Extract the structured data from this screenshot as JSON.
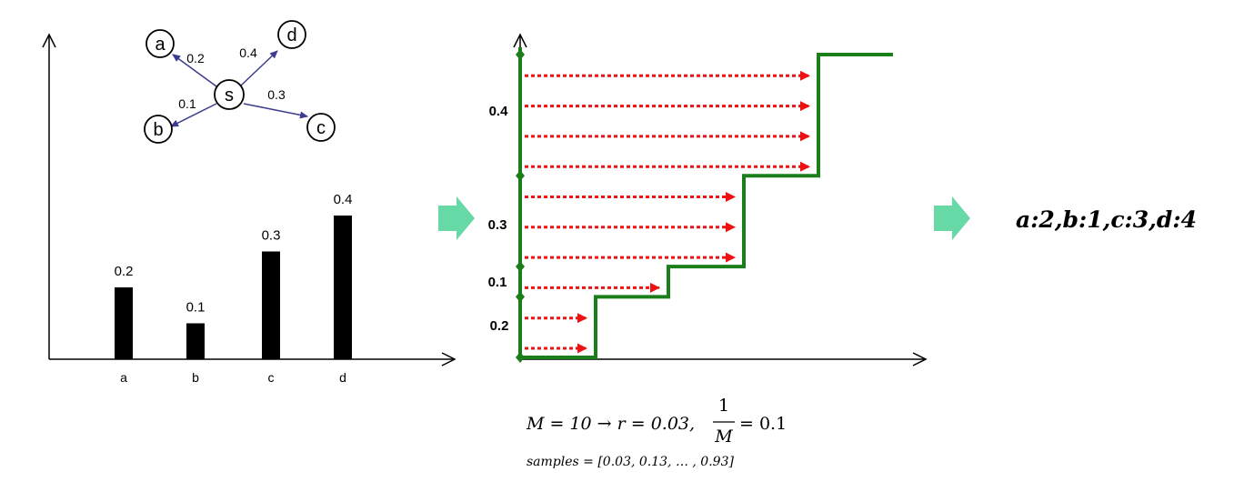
{
  "bar_chart": {
    "categories": [
      "a",
      "b",
      "c",
      "d"
    ],
    "values": [
      0.2,
      0.1,
      0.3,
      0.4
    ],
    "value_labels": [
      "0.2",
      "0.1",
      "0.3",
      "0.4"
    ]
  },
  "graph": {
    "center": "s",
    "nodes": [
      {
        "label": "a",
        "weight": "0.2"
      },
      {
        "label": "b",
        "weight": "0.1"
      },
      {
        "label": "c",
        "weight": "0.3"
      },
      {
        "label": "d",
        "weight": "0.4"
      }
    ]
  },
  "step_chart": {
    "segment_labels": [
      "0.2",
      "0.1",
      "0.3",
      "0.4"
    ],
    "cumulative": [
      0,
      0.2,
      0.3,
      0.6,
      1.0
    ],
    "samples": [
      0.03,
      0.13,
      0.23,
      0.33,
      0.43,
      0.53,
      0.63,
      0.73,
      0.83,
      0.93
    ],
    "line_color": "#1a7f1a",
    "arrow_color": "#ee1111"
  },
  "formula": {
    "line1_lhs": "M = 10 → r = 0.03,",
    "frac_num": "1",
    "frac_den": "M",
    "line1_rhs": "= 0.1",
    "line2": "samples = [0.03, 0.13, … , 0.93]"
  },
  "result": {
    "text": "a:2,b:1,c:3,d:4"
  },
  "arrow_color": "#66d9a6"
}
